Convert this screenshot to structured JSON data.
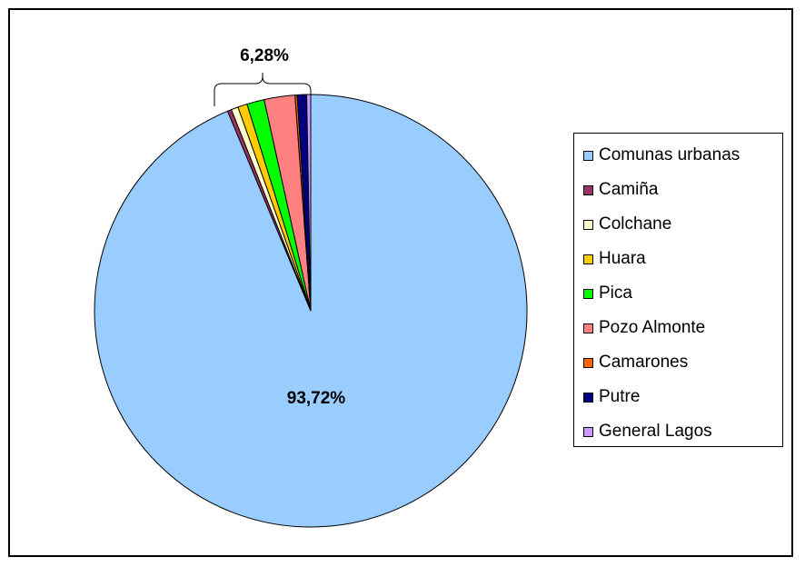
{
  "chart_data": {
    "type": "pie",
    "title": "",
    "start_angle_deg": 90,
    "direction": "clockwise",
    "slices": [
      {
        "name": "Comunas urbanas",
        "value": 93.72,
        "color": "#99CCFF"
      },
      {
        "name": "Camiña",
        "value": 0.3,
        "color": "#993366"
      },
      {
        "name": "Colchane",
        "value": 0.52,
        "color": "#FFFFCC"
      },
      {
        "name": "Huara",
        "value": 0.7,
        "color": "#FFCC00"
      },
      {
        "name": "Pica",
        "value": 1.3,
        "color": "#00FF00"
      },
      {
        "name": "Pozo Almonte",
        "value": 2.3,
        "color": "#FF8080"
      },
      {
        "name": "Camarones",
        "value": 0.16,
        "color": "#FF6600"
      },
      {
        "name": "Putre",
        "value": 0.7,
        "color": "#000080"
      },
      {
        "name": "General Lagos",
        "value": 0.3,
        "color": "#CC99FF"
      }
    ],
    "data_labels": [
      {
        "text": "93,72%",
        "applies_to": "Comunas urbanas"
      },
      {
        "text": "6,28%",
        "applies_to": "remaining communes (bracketed)"
      }
    ],
    "legend": {
      "position": "right"
    }
  }
}
